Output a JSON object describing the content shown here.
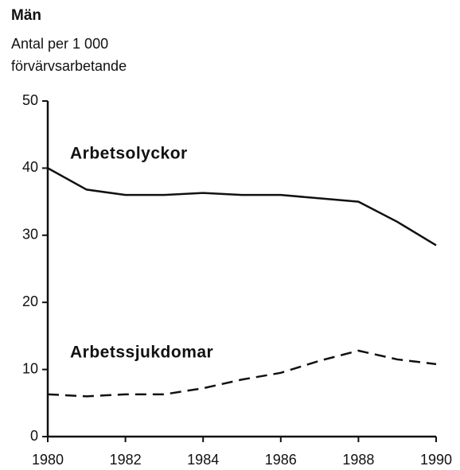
{
  "chart_data": {
    "type": "line",
    "title": "Män",
    "subtitle": [
      "Antal per 1 000",
      "förvärvsarbetande"
    ],
    "x": [
      1980,
      1981,
      1982,
      1983,
      1984,
      1985,
      1986,
      1987,
      1988,
      1989,
      1990
    ],
    "series": [
      {
        "name": "Arbetsolyckor",
        "color": "#111111",
        "style": "solid",
        "values": [
          40,
          36.8,
          36,
          36,
          36.3,
          36,
          36,
          35.5,
          35,
          32,
          28.5
        ]
      },
      {
        "name": "Arbetssjukdomar",
        "color": "#111111",
        "style": "dashed",
        "values": [
          6.3,
          6,
          6.3,
          6.3,
          7.2,
          8.5,
          9.5,
          11.3,
          12.8,
          11.5,
          10.8
        ]
      }
    ],
    "xlim": [
      1980,
      1990
    ],
    "xticks": [
      1980,
      1982,
      1984,
      1986,
      1988,
      1990
    ],
    "ylim": [
      0,
      50
    ],
    "yticks": [
      0,
      10,
      20,
      30,
      40,
      50
    ],
    "grid": false
  }
}
